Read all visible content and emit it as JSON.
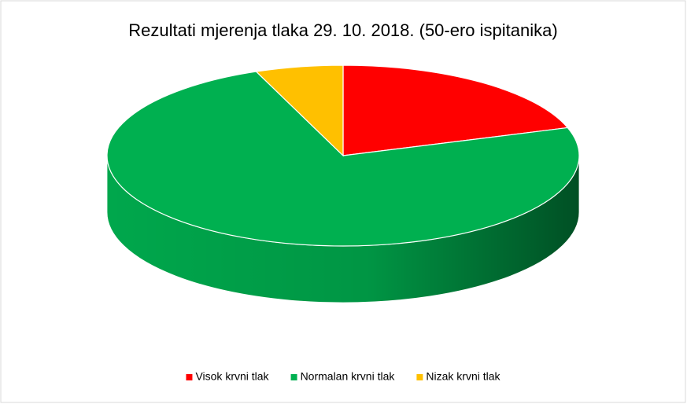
{
  "chart_data": {
    "type": "pie",
    "title": "Rezultati mjerenja tlaka 29. 10. 2018. (50-ero ispitanika)",
    "categories": [
      "Visok krvni tlak",
      "Normalan krvni tlak",
      "Nizak krvni tlak"
    ],
    "values": [
      10,
      37,
      3
    ],
    "colors": [
      "#ff0000",
      "#00b050",
      "#ffc000"
    ],
    "legend": "bottom"
  }
}
